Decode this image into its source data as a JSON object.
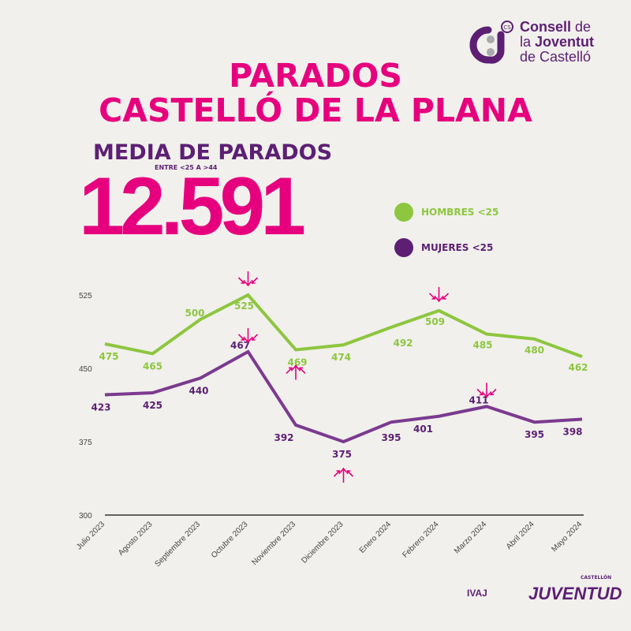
{
  "header": {
    "title_line1": "PARADOS",
    "title_line2": "CASTELLÓ DE LA PLANA",
    "subtitle": "MEDIA DE PARADOS",
    "range_note": "ENTRE <25 A >44",
    "big_number": "12.591"
  },
  "logo": {
    "line1a": "Consell",
    "line1b": " de",
    "line2a": "la ",
    "line2b": "Joventut",
    "line3": "de Castelló",
    "badge": "CS"
  },
  "footer": {
    "ivaj": "IVAJ",
    "castellon": "CASTELLÓN",
    "juventud": "JUVENTUD"
  },
  "colors": {
    "pink": "#e6007e",
    "purple": "#5c1f73",
    "green": "#8dc63f",
    "purple_line": "#7b3a8f",
    "background": "#f1f0ec"
  },
  "chart_data": {
    "type": "line",
    "categories": [
      "Julio 2023",
      "Agosto 2023",
      "Septiembre 2023",
      "Octubre 2023",
      "Noviembre 2023",
      "Diciembre 2023",
      "Enero 2024",
      "Febrero 2024",
      "Marzo 2024",
      "Abril 2024",
      "Mayo 2024"
    ],
    "series": [
      {
        "name": "HOMBRES <25",
        "color": "#8dc63f",
        "values": [
          475,
          465,
          500,
          525,
          469,
          474,
          492,
          509,
          485,
          480,
          462
        ]
      },
      {
        "name": "MUJERES <25",
        "color": "#7b3a8f",
        "values": [
          423,
          425,
          440,
          467,
          392,
          375,
          395,
          401,
          411,
          395,
          398
        ]
      }
    ],
    "yticks": [
      "300",
      "375",
      "450",
      "525"
    ],
    "ylim": [
      300,
      525
    ],
    "grid": false,
    "legend": "top-right",
    "highlights": [
      {
        "series": 0,
        "index": 3,
        "direction": "down"
      },
      {
        "series": 0,
        "index": 7,
        "direction": "down"
      },
      {
        "series": 0,
        "index": 4,
        "direction": "up"
      },
      {
        "series": 1,
        "index": 3,
        "direction": "down"
      },
      {
        "series": 1,
        "index": 8,
        "direction": "down"
      },
      {
        "series": 1,
        "index": 5,
        "direction": "up"
      }
    ]
  }
}
